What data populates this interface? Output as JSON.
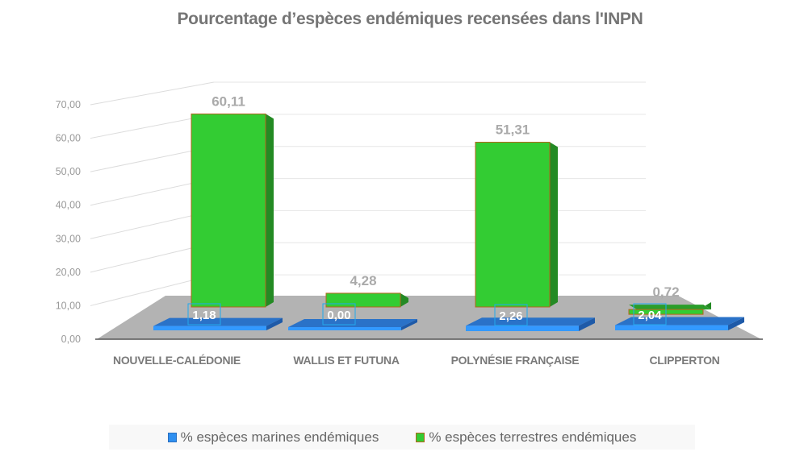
{
  "chart_data": {
    "type": "bar",
    "subtype": "3d-clustered-column",
    "title": "Pourcentage d’espèces endémiques recensées dans l'INPN",
    "xlabel": "",
    "ylabel": "",
    "ylim": [
      0,
      70
    ],
    "yticks": [
      "0,00",
      "10,00",
      "20,00",
      "30,00",
      "40,00",
      "50,00",
      "60,00",
      "70,00"
    ],
    "grid": true,
    "categories": [
      "NOUVELLE-CALÉDONIE",
      "WALLIS ET FUTUNA",
      "POLYNÉSIE FRANÇAISE",
      "CLIPPERTON"
    ],
    "series": [
      {
        "name": "% espèces marines endémiques",
        "color": "#2e8ff0",
        "values": [
          1.18,
          0.0,
          2.26,
          2.04
        ],
        "labels": [
          "1,18",
          "0,00",
          "2,26",
          "2,04"
        ]
      },
      {
        "name": "% espèces terrestres endémiques",
        "color": "#33cc33",
        "values": [
          60.11,
          4.28,
          51.31,
          0.72
        ],
        "labels": [
          "60,11",
          "4,28",
          "51,31",
          "0,72"
        ]
      }
    ],
    "legend_position": "bottom"
  }
}
